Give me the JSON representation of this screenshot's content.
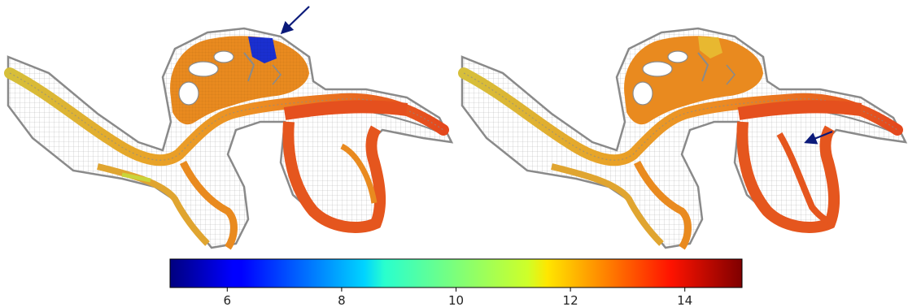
{
  "colorbar": {
    "min": 5,
    "max": 15,
    "colormap": "jet",
    "ticks": [
      {
        "value": 6,
        "label": "6"
      },
      {
        "value": 8,
        "label": "8"
      },
      {
        "value": 10,
        "label": "10"
      },
      {
        "value": 12,
        "label": "12"
      },
      {
        "value": 14,
        "label": "14"
      }
    ]
  },
  "panels": [
    {
      "id": "left",
      "highlight_color": "#1a2fd0",
      "arrow_color": "#0b1a7a"
    },
    {
      "id": "right",
      "highlight_color": "#e8b830",
      "arrow_color": "#0b1a7a"
    }
  ],
  "colors": {
    "mesh_outline": "#8a8a8a",
    "channel_yellow": "#d9b52a",
    "channel_orange": "#e98a1f",
    "channel_red": "#e5501e"
  }
}
